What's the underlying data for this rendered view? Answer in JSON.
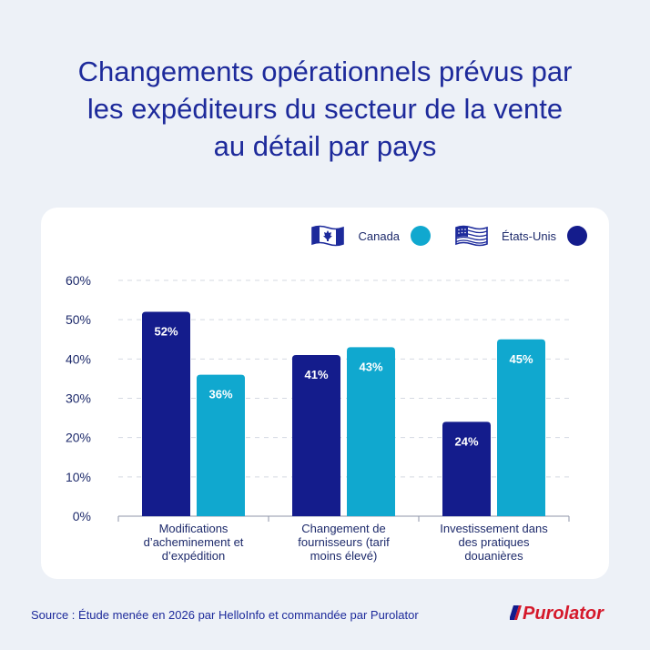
{
  "title": {
    "line1": "Changements opérationnels prévus par",
    "line2": "les expéditeurs du secteur de la vente",
    "line3": "au détail par pays"
  },
  "legend": {
    "canada": "Canada",
    "usa": "États-Unis"
  },
  "colors": {
    "canada": "#10a8cf",
    "usa": "#141c8c",
    "title": "#1d2a9b",
    "grid": "#d5d9e2",
    "background": "#edf1f7"
  },
  "chart_data": {
    "type": "bar",
    "categories": [
      [
        "Modifications",
        "d’acheminement et",
        "d’expédition"
      ],
      [
        "Changement de",
        "fournisseurs (tarif",
        "moins élevé)"
      ],
      [
        "Investissement dans",
        "des pratiques",
        "douanières"
      ]
    ],
    "series": [
      {
        "name": "États-Unis",
        "values": [
          52,
          41,
          24
        ],
        "labels": [
          "52%",
          "41%",
          "24%"
        ]
      },
      {
        "name": "Canada",
        "values": [
          36,
          43,
          45
        ],
        "labels": [
          "36%",
          "43%",
          "45%"
        ]
      }
    ],
    "yticks": [
      "0%",
      "10%",
      "20%",
      "30%",
      "40%",
      "50%",
      "60%"
    ],
    "ylim": [
      0,
      60
    ],
    "grid": "dashed horizontal",
    "legend_position": "top-right"
  },
  "source": "Source : Étude menée en 2026 par HelloInfo et commandée par Purolator",
  "logo_text": "Purolator"
}
